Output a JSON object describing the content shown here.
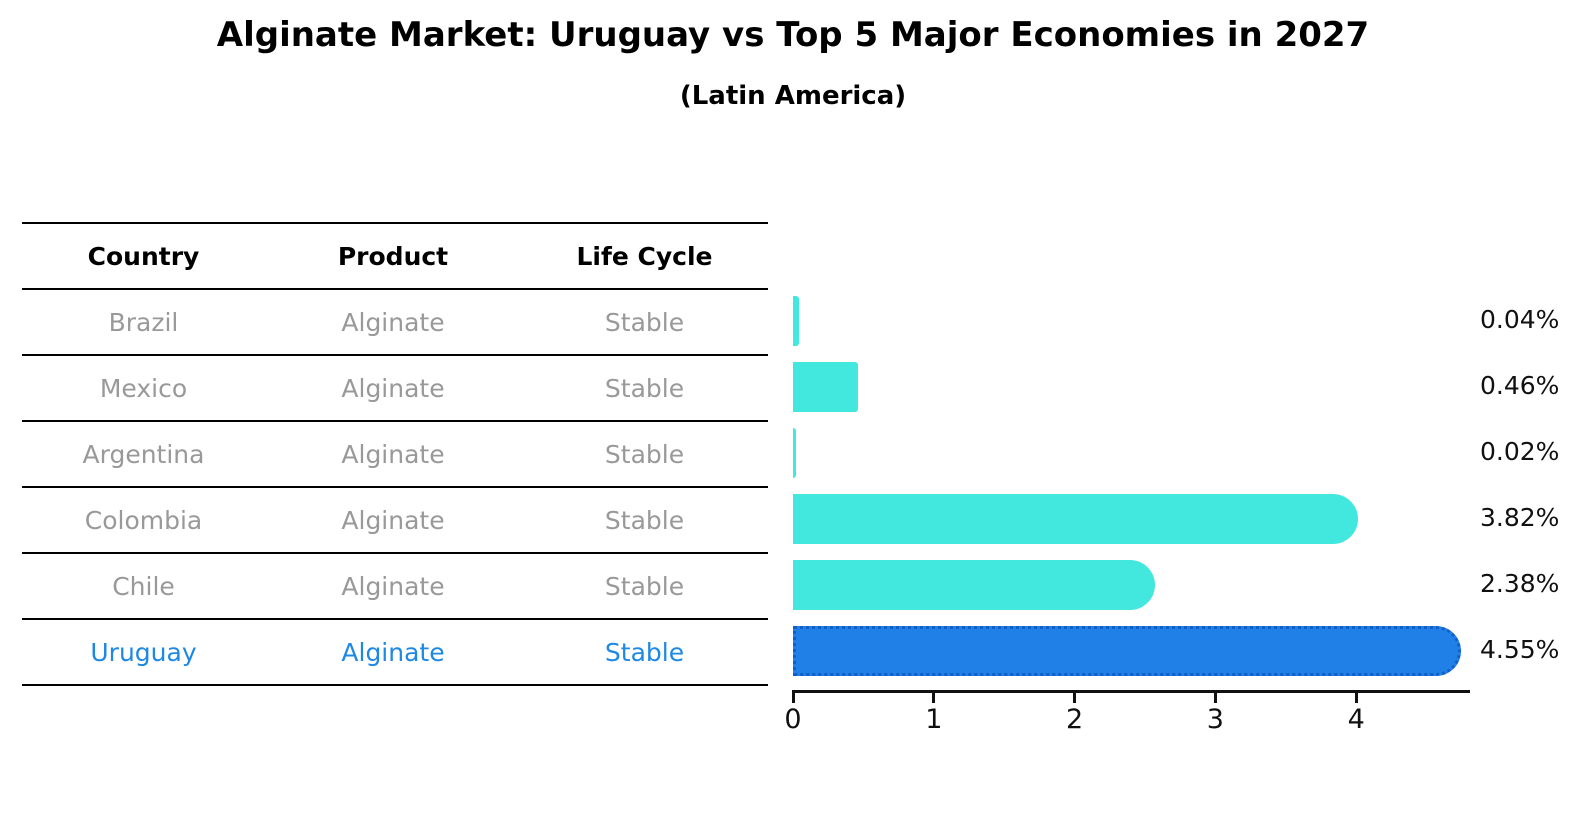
{
  "header": {
    "title": "Alginate Market: Uruguay vs Top 5 Major Economies in 2027",
    "subtitle": "(Latin America)"
  },
  "table": {
    "headers": [
      "Country",
      "Product",
      "Life Cycle"
    ],
    "rows": [
      {
        "country": "Brazil",
        "product": "Alginate",
        "life_cycle": "Stable",
        "highlighted": false
      },
      {
        "country": "Mexico",
        "product": "Alginate",
        "life_cycle": "Stable",
        "highlighted": false
      },
      {
        "country": "Argentina",
        "product": "Alginate",
        "life_cycle": "Stable",
        "highlighted": false
      },
      {
        "country": "Colombia",
        "product": "Alginate",
        "life_cycle": "Stable",
        "highlighted": false
      },
      {
        "country": "Chile",
        "product": "Alginate",
        "life_cycle": "Stable",
        "highlighted": false
      },
      {
        "country": "Uruguay",
        "product": "Alginate",
        "life_cycle": "Stable",
        "highlighted": true
      }
    ]
  },
  "chart_data": {
    "type": "bar",
    "orientation": "horizontal",
    "title": "Alginate Market: Uruguay vs Top 5 Major Economies in 2027",
    "subtitle": "(Latin America)",
    "categories": [
      "Brazil",
      "Mexico",
      "Argentina",
      "Colombia",
      "Chile",
      "Uruguay"
    ],
    "values": [
      0.04,
      0.46,
      0.02,
      3.82,
      2.38,
      4.55
    ],
    "value_labels": [
      "0.04%",
      "0.46%",
      "0.02%",
      "3.82%",
      "2.38%",
      "4.55%"
    ],
    "unit": "percent",
    "xlim": [
      0,
      4.8
    ],
    "xticks": [
      "0",
      "1",
      "2",
      "3",
      "4"
    ],
    "grid": false,
    "legend": false,
    "highlight_index": 5,
    "colors": {
      "bar": "#42E8DE",
      "highlight_bar": "#2080E8",
      "highlight_border": "#1060C8",
      "highlight_text": "#1E88E5",
      "table_text": "#999999",
      "axis": "#111111"
    }
  }
}
